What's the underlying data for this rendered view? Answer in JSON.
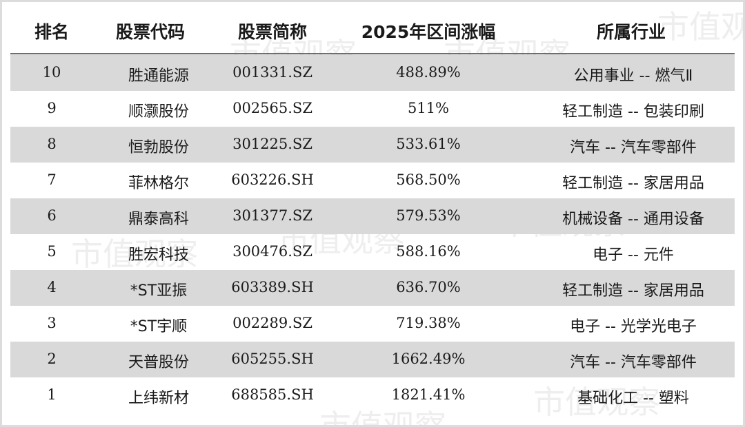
{
  "watermark": "市值观察",
  "table": {
    "headers": [
      "排名",
      "股票代码",
      "股票简称",
      "2025年区间涨幅",
      "所属行业"
    ],
    "rows": [
      {
        "rank": "10",
        "name": "胜通能源",
        "code": "001331.SZ",
        "gain": "488.89%",
        "industry": "公用事业 -- 燃气Ⅱ"
      },
      {
        "rank": "9",
        "name": "顺灏股份",
        "code": "002565.SZ",
        "gain": "511%",
        "industry": "轻工制造 -- 包装印刷"
      },
      {
        "rank": "8",
        "name": "恒勃股份",
        "code": "301225.SZ",
        "gain": "533.61%",
        "industry": "汽车 -- 汽车零部件"
      },
      {
        "rank": "7",
        "name": "菲林格尔",
        "code": "603226.SH",
        "gain": "568.50%",
        "industry": "轻工制造 -- 家居用品"
      },
      {
        "rank": "6",
        "name": "鼎泰高科",
        "code": "301377.SZ",
        "gain": "579.53%",
        "industry": "机械设备 -- 通用设备"
      },
      {
        "rank": "5",
        "name": "胜宏科技",
        "code": "300476.SZ",
        "gain": "588.16%",
        "industry": "电子 -- 元件"
      },
      {
        "rank": "4",
        "name": "*ST亚振",
        "code": "603389.SH",
        "gain": "636.70%",
        "industry": "轻工制造 -- 家居用品"
      },
      {
        "rank": "3",
        "name": "*ST宇顺",
        "code": "002289.SZ",
        "gain": "719.38%",
        "industry": "电子 -- 光学光电子"
      },
      {
        "rank": "2",
        "name": "天普股份",
        "code": "605255.SH",
        "gain": "1662.49%",
        "industry": "汽车 -- 汽车零部件"
      },
      {
        "rank": "1",
        "name": "上纬新材",
        "code": "688585.SH",
        "gain": "1821.41%",
        "industry": "基础化工 -- 塑料"
      }
    ]
  }
}
